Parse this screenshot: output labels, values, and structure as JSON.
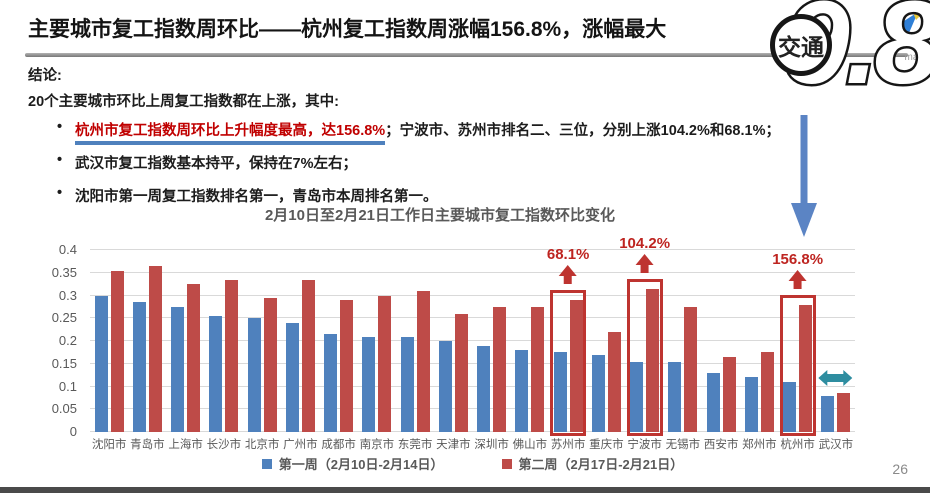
{
  "slide": {
    "title": "主要城市复工指数周环比——杭州复工指数周涨幅156.8%，涨幅最大",
    "page_number": "26"
  },
  "decor": {
    "big_number": "9.8",
    "badge_label": "交通",
    "logo_text": "map"
  },
  "conclusions": {
    "heading": "结论:",
    "intro": "20个主要城市环比上周复工指数都在上涨，其中:",
    "bullets": [
      {
        "highlight": "杭州市复工指数周环比上升幅度最高，达156.8%",
        "rest": "；宁波市、苏州市排名二、三位，分别上涨104.2%和68.1%；"
      },
      {
        "rest": "武汉市复工指数基本持平，保持在7%左右；"
      },
      {
        "rest": "沈阳市第一周复工指数排名第一，青岛市本周排名第一。"
      }
    ]
  },
  "chart_data": {
    "type": "bar",
    "title": "2月10日至2月21日工作日主要城市复工指数环比变化",
    "categories": [
      "沈阳市",
      "青岛市",
      "上海市",
      "长沙市",
      "北京市",
      "广州市",
      "成都市",
      "南京市",
      "东莞市",
      "天津市",
      "深圳市",
      "佛山市",
      "苏州市",
      "重庆市",
      "宁波市",
      "无锡市",
      "西安市",
      "郑州市",
      "杭州市",
      "武汉市"
    ],
    "series": [
      {
        "name": "第一周（2月10日-2月14日）",
        "color": "#4F81BD",
        "values": [
          0.3,
          0.285,
          0.275,
          0.255,
          0.25,
          0.24,
          0.215,
          0.21,
          0.21,
          0.2,
          0.19,
          0.18,
          0.175,
          0.17,
          0.155,
          0.155,
          0.13,
          0.12,
          0.11,
          0.08
        ]
      },
      {
        "name": "第二周（2月17日-2月21日）",
        "color": "#BE4B48",
        "values": [
          0.355,
          0.365,
          0.325,
          0.335,
          0.295,
          0.335,
          0.29,
          0.3,
          0.31,
          0.26,
          0.275,
          0.275,
          0.29,
          0.22,
          0.315,
          0.275,
          0.165,
          0.175,
          0.28,
          0.085
        ]
      }
    ],
    "ylim": [
      0,
      0.4
    ],
    "ytick_step": 0.05,
    "yticks": [
      "0",
      "0.05",
      "0.1",
      "0.15",
      "0.2",
      "0.25",
      "0.3",
      "0.35",
      "0.4"
    ],
    "grid": true,
    "legend_position": "bottom",
    "annotations": [
      {
        "category": "苏州市",
        "index": 12,
        "label": "68.1%"
      },
      {
        "category": "宁波市",
        "index": 14,
        "label": "104.2%"
      },
      {
        "category": "杭州市",
        "index": 18,
        "label": "156.8%"
      }
    ],
    "flat_marker": {
      "category": "武汉市",
      "index": 19
    }
  },
  "colors": {
    "bar_week1": "#4F81BD",
    "bar_week2": "#BE4B48",
    "highlight_red": "#BE3430",
    "bullet_red": "#C00000",
    "underline_blue": "#4F81BD",
    "teal_arrow": "#2E8DA0",
    "down_arrow_blue": "#5B84C4"
  }
}
